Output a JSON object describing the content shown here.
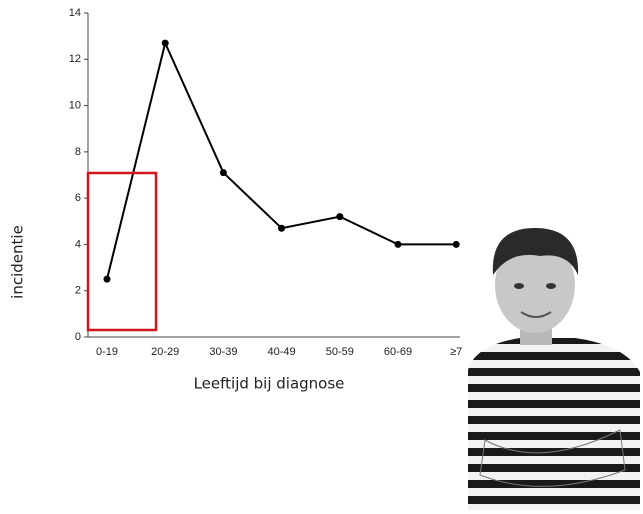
{
  "chart_data": {
    "type": "line",
    "x_label": "Leeftijd bij diagnose",
    "y_label": "incidentie",
    "categories": [
      "0-19",
      "20-29",
      "30-39",
      "40-49",
      "50-59",
      "60-69",
      "≥7"
    ],
    "values": [
      2.5,
      12.7,
      7.1,
      4.7,
      5.2,
      4.0,
      4.0
    ],
    "color": "#000000",
    "ylim": [
      0,
      14
    ],
    "yticks": [
      0,
      2,
      4,
      6,
      8,
      10,
      12,
      14
    ]
  }
}
